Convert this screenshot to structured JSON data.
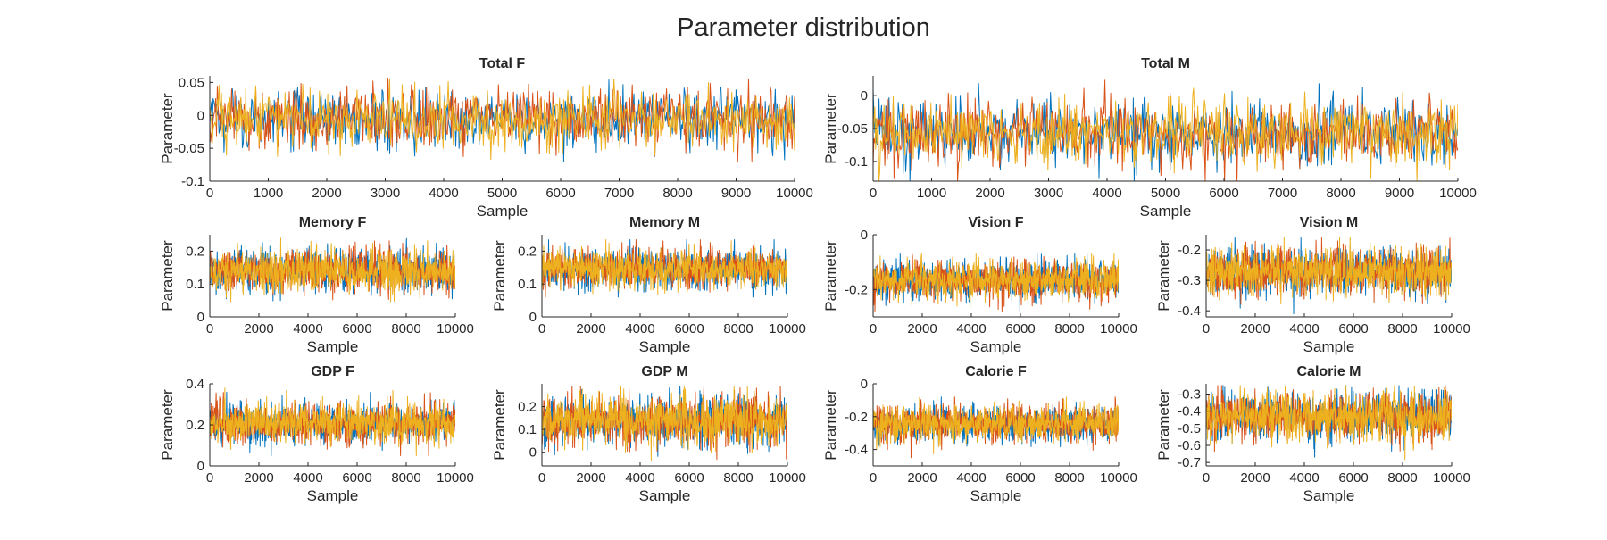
{
  "figure": {
    "title": "Parameter distribution"
  },
  "colors": {
    "chain_1": "#0072BD",
    "chain_2": "#D95319",
    "chain_3": "#EDB120"
  },
  "chart_data": [
    {
      "type": "line",
      "title": "Total F",
      "xlabel": "Sample",
      "ylabel": "Parameter",
      "xlim": [
        0,
        10000
      ],
      "ylim": [
        -0.1,
        0.06
      ],
      "xticks": [
        0,
        1000,
        2000,
        3000,
        4000,
        5000,
        6000,
        7000,
        8000,
        9000,
        10000
      ],
      "xtick_labels": [
        "0",
        "1000",
        "2000",
        "3000",
        "4000",
        "5000",
        "6000",
        "7000",
        "8000",
        "9000",
        "10000"
      ],
      "yticks": [
        -0.1,
        -0.05,
        0,
        0.05
      ],
      "ytick_labels": [
        "-0.1",
        "-0.05",
        "0",
        "0.05"
      ],
      "series_mean": -0.005,
      "series_spread": 0.022,
      "series_min": -0.07,
      "series_max": 0.058
    },
    {
      "type": "line",
      "title": "Total M",
      "xlabel": "Sample",
      "ylabel": "Parameter",
      "xlim": [
        0,
        10000
      ],
      "ylim": [
        -0.13,
        0.03
      ],
      "xticks": [
        0,
        1000,
        2000,
        3000,
        4000,
        5000,
        6000,
        7000,
        8000,
        9000,
        10000
      ],
      "xtick_labels": [
        "0",
        "1000",
        "2000",
        "3000",
        "4000",
        "5000",
        "6000",
        "7000",
        "8000",
        "9000",
        "10000"
      ],
      "yticks": [
        -0.1,
        -0.05,
        0
      ],
      "ytick_labels": [
        "-0.1",
        "-0.05",
        "0"
      ],
      "series_mean": -0.055,
      "series_spread": 0.025,
      "series_min": -0.13,
      "series_max": 0.025
    },
    {
      "type": "line",
      "title": "Memory F",
      "xlabel": "Sample",
      "ylabel": "Parameter",
      "xlim": [
        0,
        10000
      ],
      "ylim": [
        0,
        0.25
      ],
      "xticks": [
        0,
        2000,
        4000,
        6000,
        8000,
        10000
      ],
      "xtick_labels": [
        "0",
        "2000",
        "4000",
        "6000",
        "8000",
        "10000"
      ],
      "yticks": [
        0,
        0.1,
        0.2
      ],
      "ytick_labels": [
        "0",
        "0.1",
        "0.2"
      ],
      "series_mean": 0.14,
      "series_spread": 0.032,
      "series_min": 0.04,
      "series_max": 0.24
    },
    {
      "type": "line",
      "title": "Memory M",
      "xlabel": "Sample",
      "ylabel": "Parameter",
      "xlim": [
        0,
        10000
      ],
      "ylim": [
        0,
        0.25
      ],
      "xticks": [
        0,
        2000,
        4000,
        6000,
        8000,
        10000
      ],
      "xtick_labels": [
        "0",
        "2000",
        "4000",
        "6000",
        "8000",
        "10000"
      ],
      "yticks": [
        0,
        0.1,
        0.2
      ],
      "ytick_labels": [
        "0",
        "0.1",
        "0.2"
      ],
      "series_mean": 0.145,
      "series_spread": 0.03,
      "series_min": 0.06,
      "series_max": 0.235
    },
    {
      "type": "line",
      "title": "Vision F",
      "xlabel": "Sample",
      "ylabel": "Parameter",
      "xlim": [
        0,
        10000
      ],
      "ylim": [
        -0.3,
        0
      ],
      "xticks": [
        0,
        2000,
        4000,
        6000,
        8000,
        10000
      ],
      "xtick_labels": [
        "0",
        "2000",
        "4000",
        "6000",
        "8000",
        "10000"
      ],
      "yticks": [
        -0.2,
        0
      ],
      "ytick_labels": [
        "-0.2",
        "0"
      ],
      "series_mean": -0.165,
      "series_spread": 0.035,
      "series_min": -0.28,
      "series_max": -0.07
    },
    {
      "type": "line",
      "title": "Vision M",
      "xlabel": "Sample",
      "ylabel": "Parameter",
      "xlim": [
        0,
        10000
      ],
      "ylim": [
        -0.42,
        -0.15
      ],
      "xticks": [
        0,
        2000,
        4000,
        6000,
        8000,
        10000
      ],
      "xtick_labels": [
        "0",
        "2000",
        "4000",
        "6000",
        "8000",
        "10000"
      ],
      "yticks": [
        -0.4,
        -0.3,
        -0.2
      ],
      "ytick_labels": [
        "-0.4",
        "-0.3",
        "-0.2"
      ],
      "series_mean": -0.27,
      "series_spread": 0.04,
      "series_min": -0.41,
      "series_max": -0.16
    },
    {
      "type": "line",
      "title": "GDP F",
      "xlabel": "Sample",
      "ylabel": "Parameter",
      "xlim": [
        0,
        10000
      ],
      "ylim": [
        0,
        0.4
      ],
      "xticks": [
        0,
        2000,
        4000,
        6000,
        8000,
        10000
      ],
      "xtick_labels": [
        "0",
        "2000",
        "4000",
        "6000",
        "8000",
        "10000"
      ],
      "yticks": [
        0,
        0.2,
        0.4
      ],
      "ytick_labels": [
        "0",
        "0.2",
        "0.4"
      ],
      "series_mean": 0.21,
      "series_spread": 0.05,
      "series_min": 0.05,
      "series_max": 0.38
    },
    {
      "type": "line",
      "title": "GDP M",
      "xlabel": "Sample",
      "ylabel": "Parameter",
      "xlim": [
        0,
        10000
      ],
      "ylim": [
        -0.06,
        0.3
      ],
      "xticks": [
        0,
        2000,
        4000,
        6000,
        8000,
        10000
      ],
      "xtick_labels": [
        "0",
        "2000",
        "4000",
        "6000",
        "8000",
        "10000"
      ],
      "yticks": [
        0,
        0.1,
        0.2
      ],
      "ytick_labels": [
        "0",
        "0.1",
        "0.2"
      ],
      "series_mean": 0.14,
      "series_spread": 0.055,
      "series_min": -0.05,
      "series_max": 0.29
    },
    {
      "type": "line",
      "title": "Calorie F",
      "xlabel": "Sample",
      "ylabel": "Parameter",
      "xlim": [
        0,
        10000
      ],
      "ylim": [
        -0.5,
        0
      ],
      "xticks": [
        0,
        2000,
        4000,
        6000,
        8000,
        10000
      ],
      "xtick_labels": [
        "0",
        "2000",
        "4000",
        "6000",
        "8000",
        "10000"
      ],
      "yticks": [
        -0.4,
        -0.2,
        0
      ],
      "ytick_labels": [
        "-0.4",
        "-0.2",
        "0"
      ],
      "series_mean": -0.245,
      "series_spread": 0.055,
      "series_min": -0.45,
      "series_max": -0.08
    },
    {
      "type": "line",
      "title": "Calorie M",
      "xlabel": "Sample",
      "ylabel": "Parameter",
      "xlim": [
        0,
        10000
      ],
      "ylim": [
        -0.72,
        -0.24
      ],
      "xticks": [
        0,
        2000,
        4000,
        6000,
        8000,
        10000
      ],
      "xtick_labels": [
        "0",
        "2000",
        "4000",
        "6000",
        "8000",
        "10000"
      ],
      "yticks": [
        -0.7,
        -0.6,
        -0.5,
        -0.4,
        -0.3
      ],
      "ytick_labels": [
        "-0.7",
        "-0.6",
        "-0.5",
        "-0.4",
        "-0.3"
      ],
      "series_mean": -0.43,
      "series_spread": 0.07,
      "series_min": -0.7,
      "series_max": -0.25
    }
  ]
}
